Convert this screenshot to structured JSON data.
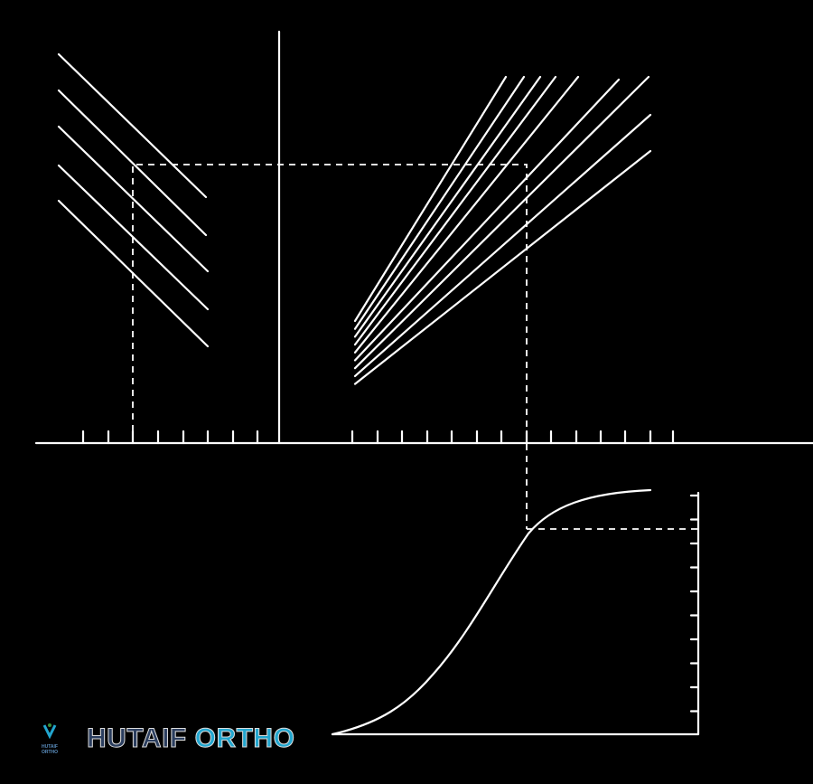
{
  "logo": {
    "word1": "HUTAIF",
    "word2": "ORTHO",
    "small_text": "HUTAIF ORTHO",
    "colors": {
      "word1": "#2b3e5f",
      "word2": "#22a6cf"
    }
  },
  "diagram": {
    "background": "#000000",
    "line_color": "#ffffff"
  }
}
